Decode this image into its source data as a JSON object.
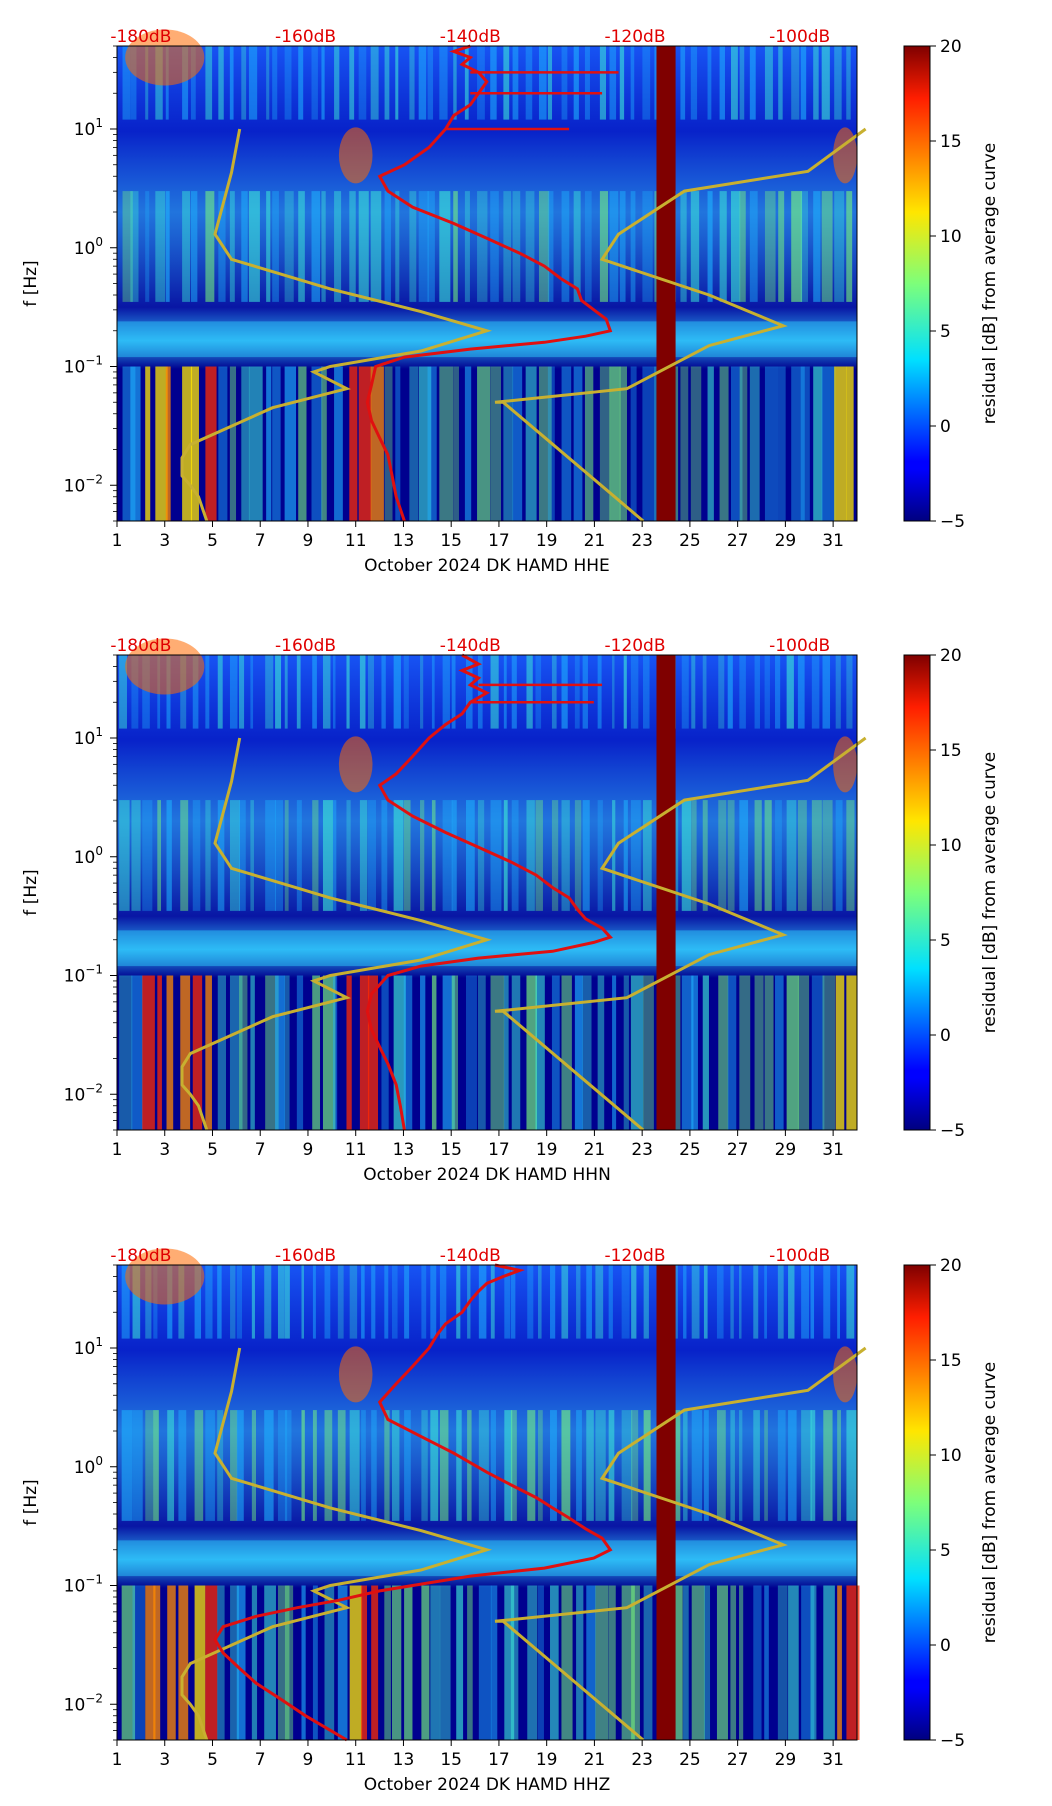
{
  "chart_data": [
    {
      "type": "heatmap",
      "title": "",
      "xlabel": "October 2024 DK HAMD  HHE",
      "ylabel": "f [Hz]",
      "x_ticks": [
        "1",
        "3",
        "5",
        "7",
        "9",
        "11",
        "13",
        "15",
        "17",
        "19",
        "21",
        "23",
        "25",
        "27",
        "29",
        "31"
      ],
      "x_range_days": [
        1,
        32
      ],
      "y_scale": "log",
      "ylim_hz": [
        0.005,
        50
      ],
      "y_ticks": [
        {
          "value": 0.01,
          "base": "10",
          "exp": "−2"
        },
        {
          "value": 0.1,
          "base": "10",
          "exp": "−1"
        },
        {
          "value": 1,
          "base": "10",
          "exp": "0"
        },
        {
          "value": 10,
          "base": "10",
          "exp": "1"
        }
      ],
      "top_axis_labels": [
        "-180dB",
        "-160dB",
        "-140dB",
        "-120dB",
        "-100dB"
      ],
      "top_axis_db": [
        -180,
        -160,
        -140,
        -120,
        -100
      ],
      "colorbar": {
        "label": "residual [dB] from average curve",
        "range": [
          -5,
          20
        ],
        "ticks": [
          "20",
          "15",
          "10",
          "5",
          "0",
          "−5"
        ]
      },
      "data_gap_days": [
        23.6,
        24.4
      ],
      "red_curve": {
        "name": "average PSD (top axis, dB)",
        "points": [
          [
            -148,
            0.005
          ],
          [
            -149,
            0.008
          ],
          [
            -149.5,
            0.012
          ],
          [
            -150,
            0.018
          ],
          [
            -151,
            0.025
          ],
          [
            -152,
            0.035
          ],
          [
            -152.5,
            0.05
          ],
          [
            -152,
            0.07
          ],
          [
            -151.5,
            0.1
          ],
          [
            -148,
            0.12
          ],
          [
            -140,
            0.14
          ],
          [
            -131,
            0.16
          ],
          [
            -126,
            0.18
          ],
          [
            -123,
            0.2
          ],
          [
            -123.5,
            0.25
          ],
          [
            -125,
            0.3
          ],
          [
            -126.5,
            0.36
          ],
          [
            -127,
            0.45
          ],
          [
            -129,
            0.55
          ],
          [
            -131,
            0.7
          ],
          [
            -134,
            0.9
          ],
          [
            -138,
            1.2
          ],
          [
            -142,
            1.6
          ],
          [
            -147,
            2.2
          ],
          [
            -150,
            3
          ],
          [
            -151,
            4
          ],
          [
            -148,
            5
          ],
          [
            -145,
            7
          ],
          [
            -143,
            10
          ],
          [
            -142,
            13
          ],
          [
            -140,
            16
          ],
          [
            -139,
            20
          ],
          [
            -138,
            25
          ],
          [
            -139,
            30
          ],
          [
            -141,
            35
          ],
          [
            -140,
            40
          ],
          [
            -142,
            45
          ],
          [
            -140,
            50
          ]
        ]
      },
      "red_spikes": [
        [
          -143,
          10,
          -128,
          10
        ],
        [
          -140,
          20,
          -124,
          20
        ],
        [
          -140,
          30,
          -122,
          30
        ]
      ],
      "yellow_curve": {
        "name": "noise model (top axis, dB)",
        "points": [
          [
            -172,
            0.005
          ],
          [
            -173,
            0.008
          ],
          [
            -174,
            0.01
          ],
          [
            -175,
            0.012
          ],
          [
            -175,
            0.017
          ],
          [
            -174,
            0.022
          ],
          [
            -164,
            0.045
          ],
          [
            -155,
            0.065
          ],
          [
            -159,
            0.09
          ],
          [
            -157,
            0.1
          ],
          [
            -146,
            0.135
          ],
          [
            -138,
            0.2
          ],
          [
            -146,
            0.29
          ],
          [
            -157,
            0.45
          ],
          [
            -169,
            0.8
          ],
          [
            -171,
            1.3
          ],
          [
            -169,
            4.3
          ],
          [
            -168,
            10
          ]
        ]
      },
      "yellow_curve_b": {
        "points": [
          [
            -119,
            0.005
          ],
          [
            -136,
            0.05
          ],
          [
            -137,
            0.05
          ],
          [
            -121,
            0.065
          ],
          [
            -111,
            0.15
          ],
          [
            -102,
            0.22
          ],
          [
            -111,
            0.4
          ],
          [
            -124,
            0.8
          ],
          [
            -122,
            1.3
          ],
          [
            -114,
            3
          ],
          [
            -99,
            4.4
          ],
          [
            -92,
            10
          ]
        ]
      }
    },
    {
      "type": "heatmap",
      "title": "",
      "xlabel": "October 2024 DK HAMD  HHN",
      "ylabel": "f [Hz]",
      "x_ticks": [
        "1",
        "3",
        "5",
        "7",
        "9",
        "11",
        "13",
        "15",
        "17",
        "19",
        "21",
        "23",
        "25",
        "27",
        "29",
        "31"
      ],
      "x_range_days": [
        1,
        32
      ],
      "y_scale": "log",
      "ylim_hz": [
        0.005,
        50
      ],
      "y_ticks": [
        {
          "value": 0.01,
          "base": "10",
          "exp": "−2"
        },
        {
          "value": 0.1,
          "base": "10",
          "exp": "−1"
        },
        {
          "value": 1,
          "base": "10",
          "exp": "0"
        },
        {
          "value": 10,
          "base": "10",
          "exp": "1"
        }
      ],
      "top_axis_labels": [
        "-180dB",
        "-160dB",
        "-140dB",
        "-120dB",
        "-100dB"
      ],
      "top_axis_db": [
        -180,
        -160,
        -140,
        -120,
        -100
      ],
      "colorbar": {
        "label": "residual [dB] from average curve",
        "range": [
          -5,
          20
        ],
        "ticks": [
          "20",
          "15",
          "10",
          "5",
          "0",
          "−5"
        ]
      },
      "data_gap_days": [
        23.6,
        24.4
      ],
      "red_curve": {
        "name": "average PSD (top axis, dB)",
        "points": [
          [
            -148,
            0.005
          ],
          [
            -148.5,
            0.008
          ],
          [
            -149,
            0.012
          ],
          [
            -150,
            0.018
          ],
          [
            -151,
            0.025
          ],
          [
            -152,
            0.035
          ],
          [
            -152.5,
            0.05
          ],
          [
            -152,
            0.07
          ],
          [
            -150,
            0.1
          ],
          [
            -146,
            0.12
          ],
          [
            -139,
            0.14
          ],
          [
            -130,
            0.16
          ],
          [
            -125,
            0.19
          ],
          [
            -123,
            0.21
          ],
          [
            -124,
            0.25
          ],
          [
            -126,
            0.3
          ],
          [
            -127,
            0.36
          ],
          [
            -128,
            0.45
          ],
          [
            -130,
            0.55
          ],
          [
            -132,
            0.7
          ],
          [
            -135,
            0.9
          ],
          [
            -139,
            1.2
          ],
          [
            -143,
            1.6
          ],
          [
            -147,
            2.2
          ],
          [
            -150,
            3
          ],
          [
            -151,
            4
          ],
          [
            -149,
            5
          ],
          [
            -147,
            7
          ],
          [
            -145,
            10
          ],
          [
            -143,
            13
          ],
          [
            -141,
            16
          ],
          [
            -140,
            20
          ],
          [
            -138,
            24
          ],
          [
            -140,
            28
          ],
          [
            -139,
            32
          ],
          [
            -141,
            37
          ],
          [
            -139,
            42
          ],
          [
            -141,
            50
          ]
        ]
      },
      "red_spikes": [
        [
          -140,
          20,
          -125,
          20
        ],
        [
          -139,
          28,
          -124,
          28
        ]
      ],
      "yellow_curve": {
        "name": "noise model (top axis, dB)",
        "points": [
          [
            -172,
            0.005
          ],
          [
            -173,
            0.008
          ],
          [
            -174,
            0.01
          ],
          [
            -175,
            0.012
          ],
          [
            -175,
            0.017
          ],
          [
            -174,
            0.022
          ],
          [
            -164,
            0.045
          ],
          [
            -155,
            0.065
          ],
          [
            -159,
            0.09
          ],
          [
            -157,
            0.1
          ],
          [
            -146,
            0.135
          ],
          [
            -138,
            0.2
          ],
          [
            -146,
            0.29
          ],
          [
            -157,
            0.45
          ],
          [
            -169,
            0.8
          ],
          [
            -171,
            1.3
          ],
          [
            -169,
            4.3
          ],
          [
            -168,
            10
          ]
        ]
      },
      "yellow_curve_b": {
        "points": [
          [
            -119,
            0.005
          ],
          [
            -136,
            0.05
          ],
          [
            -137,
            0.05
          ],
          [
            -121,
            0.065
          ],
          [
            -111,
            0.15
          ],
          [
            -102,
            0.22
          ],
          [
            -111,
            0.4
          ],
          [
            -124,
            0.8
          ],
          [
            -122,
            1.3
          ],
          [
            -114,
            3
          ],
          [
            -99,
            4.4
          ],
          [
            -92,
            10
          ]
        ]
      }
    },
    {
      "type": "heatmap",
      "title": "",
      "xlabel": "October 2024 DK HAMD  HHZ",
      "ylabel": "f [Hz]",
      "x_ticks": [
        "1",
        "3",
        "5",
        "7",
        "9",
        "11",
        "13",
        "15",
        "17",
        "19",
        "21",
        "23",
        "25",
        "27",
        "29",
        "31"
      ],
      "x_range_days": [
        1,
        32
      ],
      "y_scale": "log",
      "ylim_hz": [
        0.005,
        50
      ],
      "y_ticks": [
        {
          "value": 0.01,
          "base": "10",
          "exp": "−2"
        },
        {
          "value": 0.1,
          "base": "10",
          "exp": "−1"
        },
        {
          "value": 1,
          "base": "10",
          "exp": "0"
        },
        {
          "value": 10,
          "base": "10",
          "exp": "1"
        }
      ],
      "top_axis_labels": [
        "-180dB",
        "-160dB",
        "-140dB",
        "-120dB",
        "-100dB"
      ],
      "top_axis_db": [
        -180,
        -160,
        -140,
        -120,
        -100
      ],
      "colorbar": {
        "label": "residual [dB] from average curve",
        "range": [
          -5,
          20
        ],
        "ticks": [
          "20",
          "15",
          "10",
          "5",
          "0",
          "−5"
        ]
      },
      "data_gap_days": [
        23.6,
        24.4
      ],
      "red_curve": {
        "name": "average PSD (top axis, dB)",
        "points": [
          [
            -155,
            0.005
          ],
          [
            -160,
            0.008
          ],
          [
            -163,
            0.011
          ],
          [
            -166,
            0.015
          ],
          [
            -168,
            0.02
          ],
          [
            -170,
            0.027
          ],
          [
            -171,
            0.035
          ],
          [
            -170,
            0.045
          ],
          [
            -166,
            0.055
          ],
          [
            -161,
            0.065
          ],
          [
            -156,
            0.075
          ],
          [
            -151,
            0.09
          ],
          [
            -147,
            0.1
          ],
          [
            -140,
            0.12
          ],
          [
            -131,
            0.14
          ],
          [
            -125,
            0.17
          ],
          [
            -123,
            0.2
          ],
          [
            -124,
            0.25
          ],
          [
            -126,
            0.3
          ],
          [
            -128,
            0.37
          ],
          [
            -130,
            0.45
          ],
          [
            -132,
            0.55
          ],
          [
            -135,
            0.7
          ],
          [
            -138,
            0.9
          ],
          [
            -142,
            1.3
          ],
          [
            -146,
            1.8
          ],
          [
            -150,
            2.5
          ],
          [
            -151,
            3.5
          ],
          [
            -149,
            5
          ],
          [
            -147,
            7
          ],
          [
            -145,
            10
          ],
          [
            -144,
            13
          ],
          [
            -143,
            16
          ],
          [
            -141,
            20
          ],
          [
            -140,
            25
          ],
          [
            -139,
            30
          ],
          [
            -138,
            35
          ],
          [
            -136,
            40
          ],
          [
            -134,
            45
          ],
          [
            -137,
            50
          ]
        ]
      },
      "red_spikes": [],
      "yellow_curve": {
        "name": "noise model (top axis, dB)",
        "points": [
          [
            -172,
            0.005
          ],
          [
            -173,
            0.008
          ],
          [
            -174,
            0.01
          ],
          [
            -175,
            0.012
          ],
          [
            -175,
            0.017
          ],
          [
            -174,
            0.022
          ],
          [
            -164,
            0.045
          ],
          [
            -155,
            0.065
          ],
          [
            -159,
            0.09
          ],
          [
            -157,
            0.1
          ],
          [
            -146,
            0.135
          ],
          [
            -138,
            0.2
          ],
          [
            -146,
            0.29
          ],
          [
            -157,
            0.45
          ],
          [
            -169,
            0.8
          ],
          [
            -171,
            1.3
          ],
          [
            -169,
            4.3
          ],
          [
            -168,
            10
          ]
        ]
      },
      "yellow_curve_b": {
        "points": [
          [
            -119,
            0.005
          ],
          [
            -136,
            0.05
          ],
          [
            -137,
            0.05
          ],
          [
            -121,
            0.065
          ],
          [
            -111,
            0.15
          ],
          [
            -102,
            0.22
          ],
          [
            -111,
            0.4
          ],
          [
            -124,
            0.8
          ],
          [
            -122,
            1.3
          ],
          [
            -114,
            3
          ],
          [
            -99,
            4.4
          ],
          [
            -92,
            10
          ]
        ]
      }
    }
  ],
  "colors": {
    "red_curve": "#e01010",
    "yellow_curve": "#c8b030",
    "top_label": "#e00000",
    "gap": "#7f0000"
  }
}
